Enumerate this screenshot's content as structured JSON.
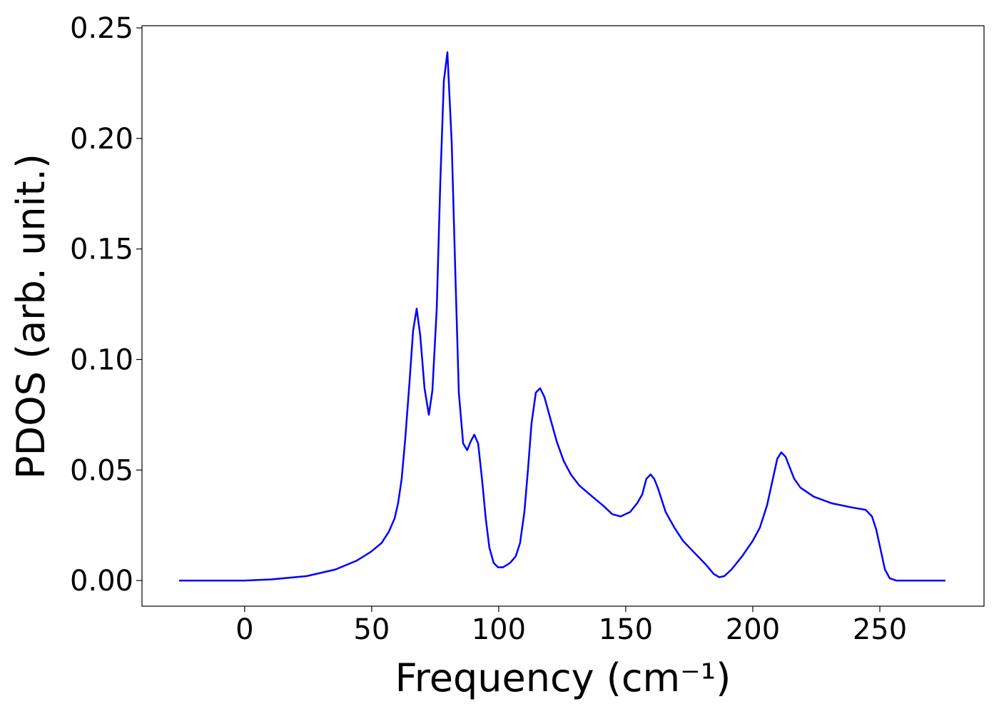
{
  "chart_data": {
    "type": "line",
    "x_label": "Frequency (cm⁻¹)",
    "y_label": "PDOS (arb. unit.)",
    "color": "#0000ff",
    "x": [
      -25.8,
      0,
      10.4,
      24.4,
      35.7,
      44.1,
      49.7,
      53.9,
      56.7,
      59,
      60.4,
      61.8,
      63.2,
      64.9,
      66.3,
      67.7,
      69.1,
      70.8,
      72.5,
      73.9,
      75.6,
      77,
      78.4,
      79.8,
      81.5,
      82.9,
      84.3,
      86,
      87.6,
      89,
      90.4,
      91.9,
      93.5,
      94.9,
      96.3,
      98,
      99.7,
      101.7,
      104.5,
      106.7,
      108.4,
      110.1,
      111.5,
      112.9,
      114.6,
      116.3,
      118,
      119.9,
      122.8,
      125.6,
      128.4,
      131.7,
      136.8,
      141,
      144.7,
      148,
      151.7,
      154.5,
      156.5,
      158.1,
      159.8,
      161.2,
      162.6,
      165.7,
      169.1,
      172.5,
      177.5,
      181.7,
      184.6,
      186.8,
      188.8,
      191.6,
      195.8,
      200,
      202.8,
      205.6,
      207.9,
      209.6,
      211.2,
      212.9,
      214.6,
      216.3,
      218.8,
      223.9,
      230.9,
      239.3,
      244.4,
      246.9,
      248.6,
      250.3,
      252,
      253.9,
      256.5,
      275.8
    ],
    "values": [
      0,
      0,
      0.0005,
      0.002,
      0.005,
      0.009,
      0.013,
      0.017,
      0.022,
      0.028,
      0.035,
      0.046,
      0.064,
      0.09,
      0.113,
      0.123,
      0.111,
      0.087,
      0.075,
      0.086,
      0.123,
      0.18,
      0.226,
      0.239,
      0.198,
      0.14,
      0.085,
      0.062,
      0.059,
      0.063,
      0.066,
      0.062,
      0.045,
      0.028,
      0.015,
      0.008,
      0.006,
      0.006,
      0.008,
      0.011,
      0.017,
      0.031,
      0.05,
      0.071,
      0.085,
      0.087,
      0.083,
      0.075,
      0.063,
      0.054,
      0.048,
      0.043,
      0.038,
      0.034,
      0.03,
      0.029,
      0.031,
      0.035,
      0.039,
      0.046,
      0.048,
      0.046,
      0.042,
      0.031,
      0.024,
      0.018,
      0.012,
      0.007,
      0.003,
      0.0015,
      0.002,
      0.005,
      0.011,
      0.018,
      0.024,
      0.034,
      0.046,
      0.055,
      0.058,
      0.056,
      0.051,
      0.046,
      0.042,
      0.038,
      0.035,
      0.033,
      0.032,
      0.029,
      0.023,
      0.014,
      0.005,
      0.001,
      0,
      0
    ],
    "xlim": [
      -40.4,
      291
    ],
    "ylim": [
      -0.0116,
      0.251
    ],
    "xticks": [
      0,
      50,
      100,
      150,
      200,
      250
    ],
    "yticks": [
      {
        "value": 0,
        "label": "0.00"
      },
      {
        "value": 0.05,
        "label": "0.05"
      },
      {
        "value": 0.1,
        "label": "0.10"
      },
      {
        "value": 0.15,
        "label": "0.15"
      },
      {
        "value": 0.2,
        "label": "0.20"
      },
      {
        "value": 0.25,
        "label": "0.25"
      }
    ]
  }
}
